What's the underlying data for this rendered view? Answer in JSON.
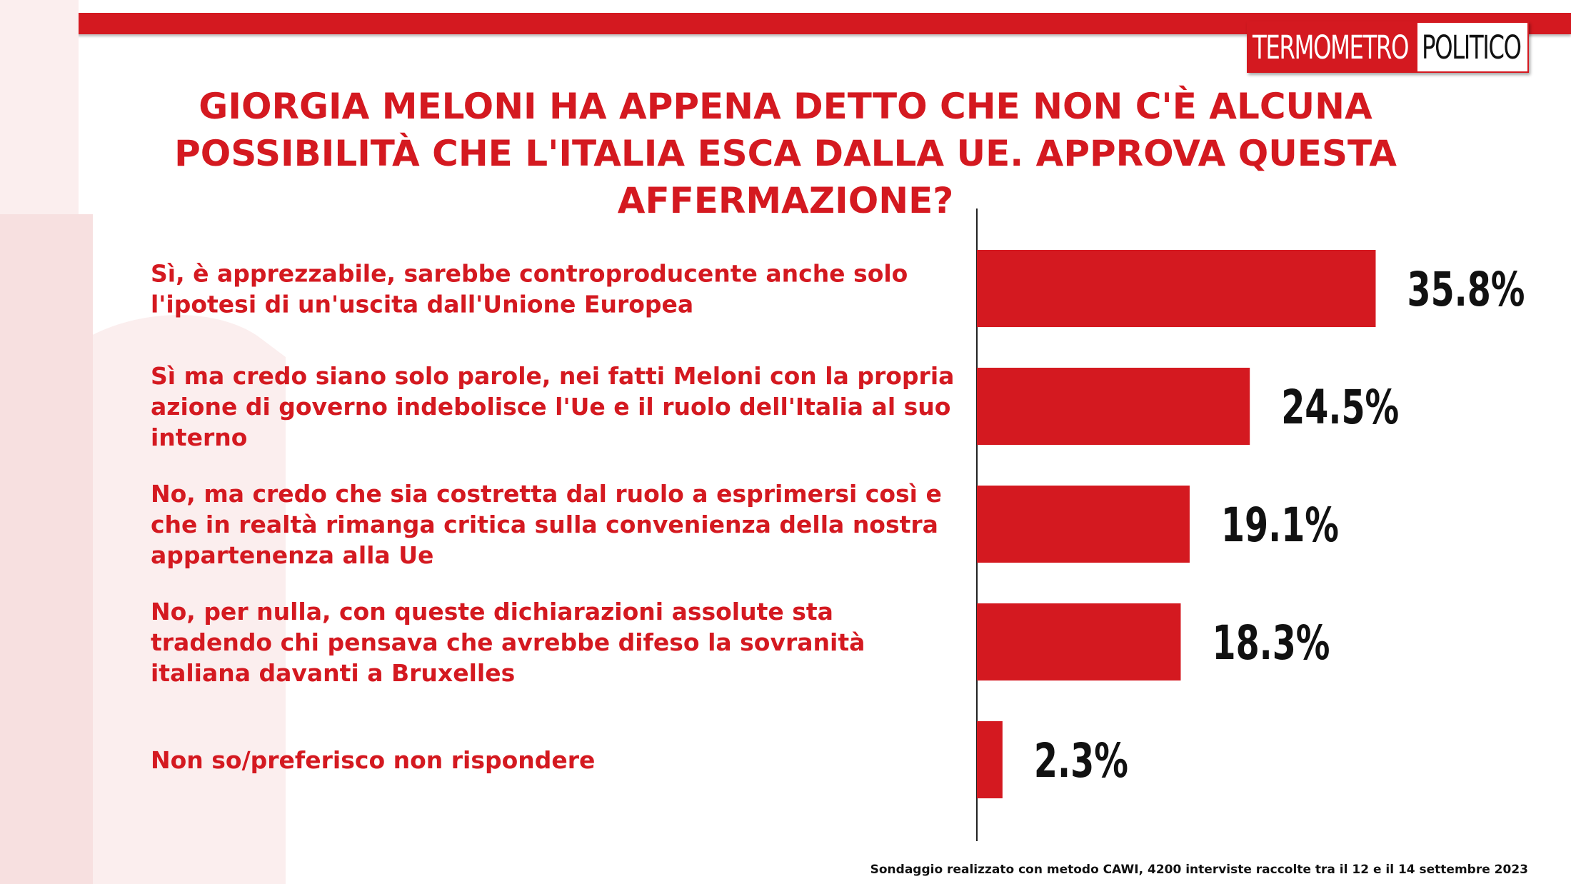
{
  "logo": {
    "left_text": "TERMOMETRO",
    "right_text": "POLITICO"
  },
  "colors": {
    "accent": "#d41920",
    "bar": "#d41920",
    "text_dark": "#111111"
  },
  "footnote": "Sondaggio realizzato con metodo CAWI, 4200 interviste raccolte tra il 12 e il 14 settembre 2023",
  "chart_data": {
    "type": "bar",
    "orientation": "horizontal",
    "title": "GIORGIA MELONI HA APPENA DETTO CHE NON C'È ALCUNA\nPOSSIBILITÀ CHE L'ITALIA ESCA DALLA UE. APPROVA QUESTA\nAFFERMAZIONE?",
    "categories": [
      [
        "Sì, è apprezzabile, sarebbe controproducente anche solo",
        "l'ipotesi di un'uscita dall'Unione Europea"
      ],
      [
        "Sì ma credo siano solo parole, nei fatti Meloni con la propria",
        "azione di governo indebolisce l'Ue e il ruolo dell'Italia al suo",
        "interno"
      ],
      [
        "No, ma credo che sia costretta dal ruolo a esprimersi così e",
        "che in realtà  rimanga critica sulla convenienza della nostra",
        "appartenenza alla Ue"
      ],
      [
        "No, per nulla, con queste dichiarazioni assolute sta",
        "tradendo chi pensava che avrebbe difeso la sovranità",
        "italiana davanti a Bruxelles"
      ],
      [
        "Non so/preferisco non rispondere"
      ]
    ],
    "values": [
      35.8,
      24.5,
      19.1,
      18.3,
      2.3
    ],
    "value_labels": [
      "35.8%",
      "24.5%",
      "19.1%",
      "18.3%",
      "2.3%"
    ],
    "xlim": [
      0,
      52
    ],
    "grid": false,
    "legend": "none"
  }
}
